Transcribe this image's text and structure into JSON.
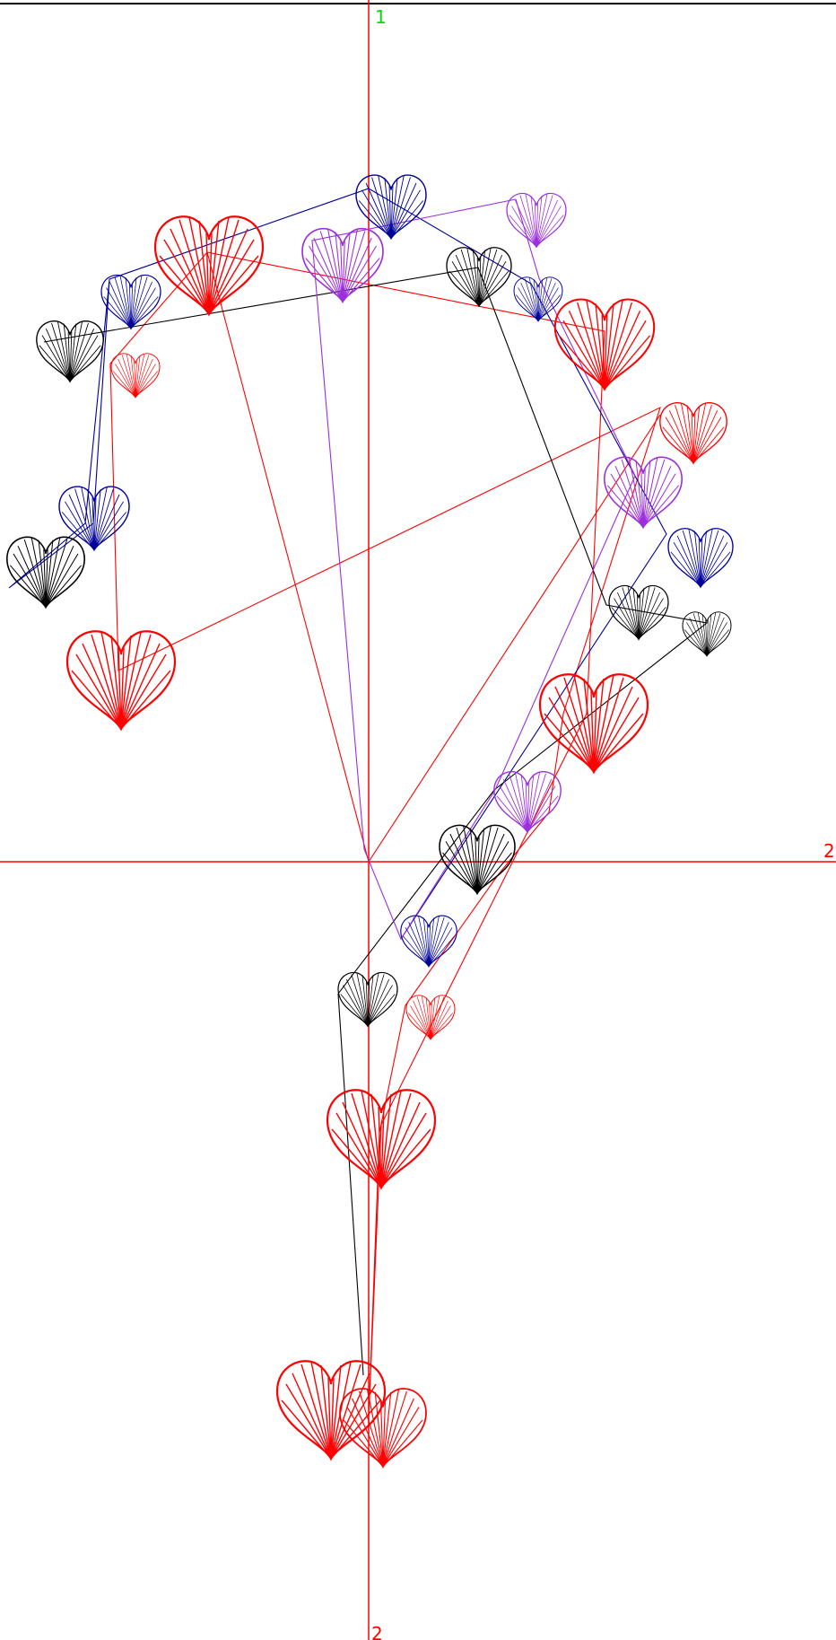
{
  "axis_labels": {
    "top": "1",
    "right": "2",
    "bottom": "2"
  },
  "colors": {
    "axis": "#ff0000",
    "top_label": "#00dd00",
    "red": "#ff0000",
    "blue": "#00009c",
    "black": "#000000",
    "purple": "#9b2fdc"
  },
  "icon": "heart-icon"
}
